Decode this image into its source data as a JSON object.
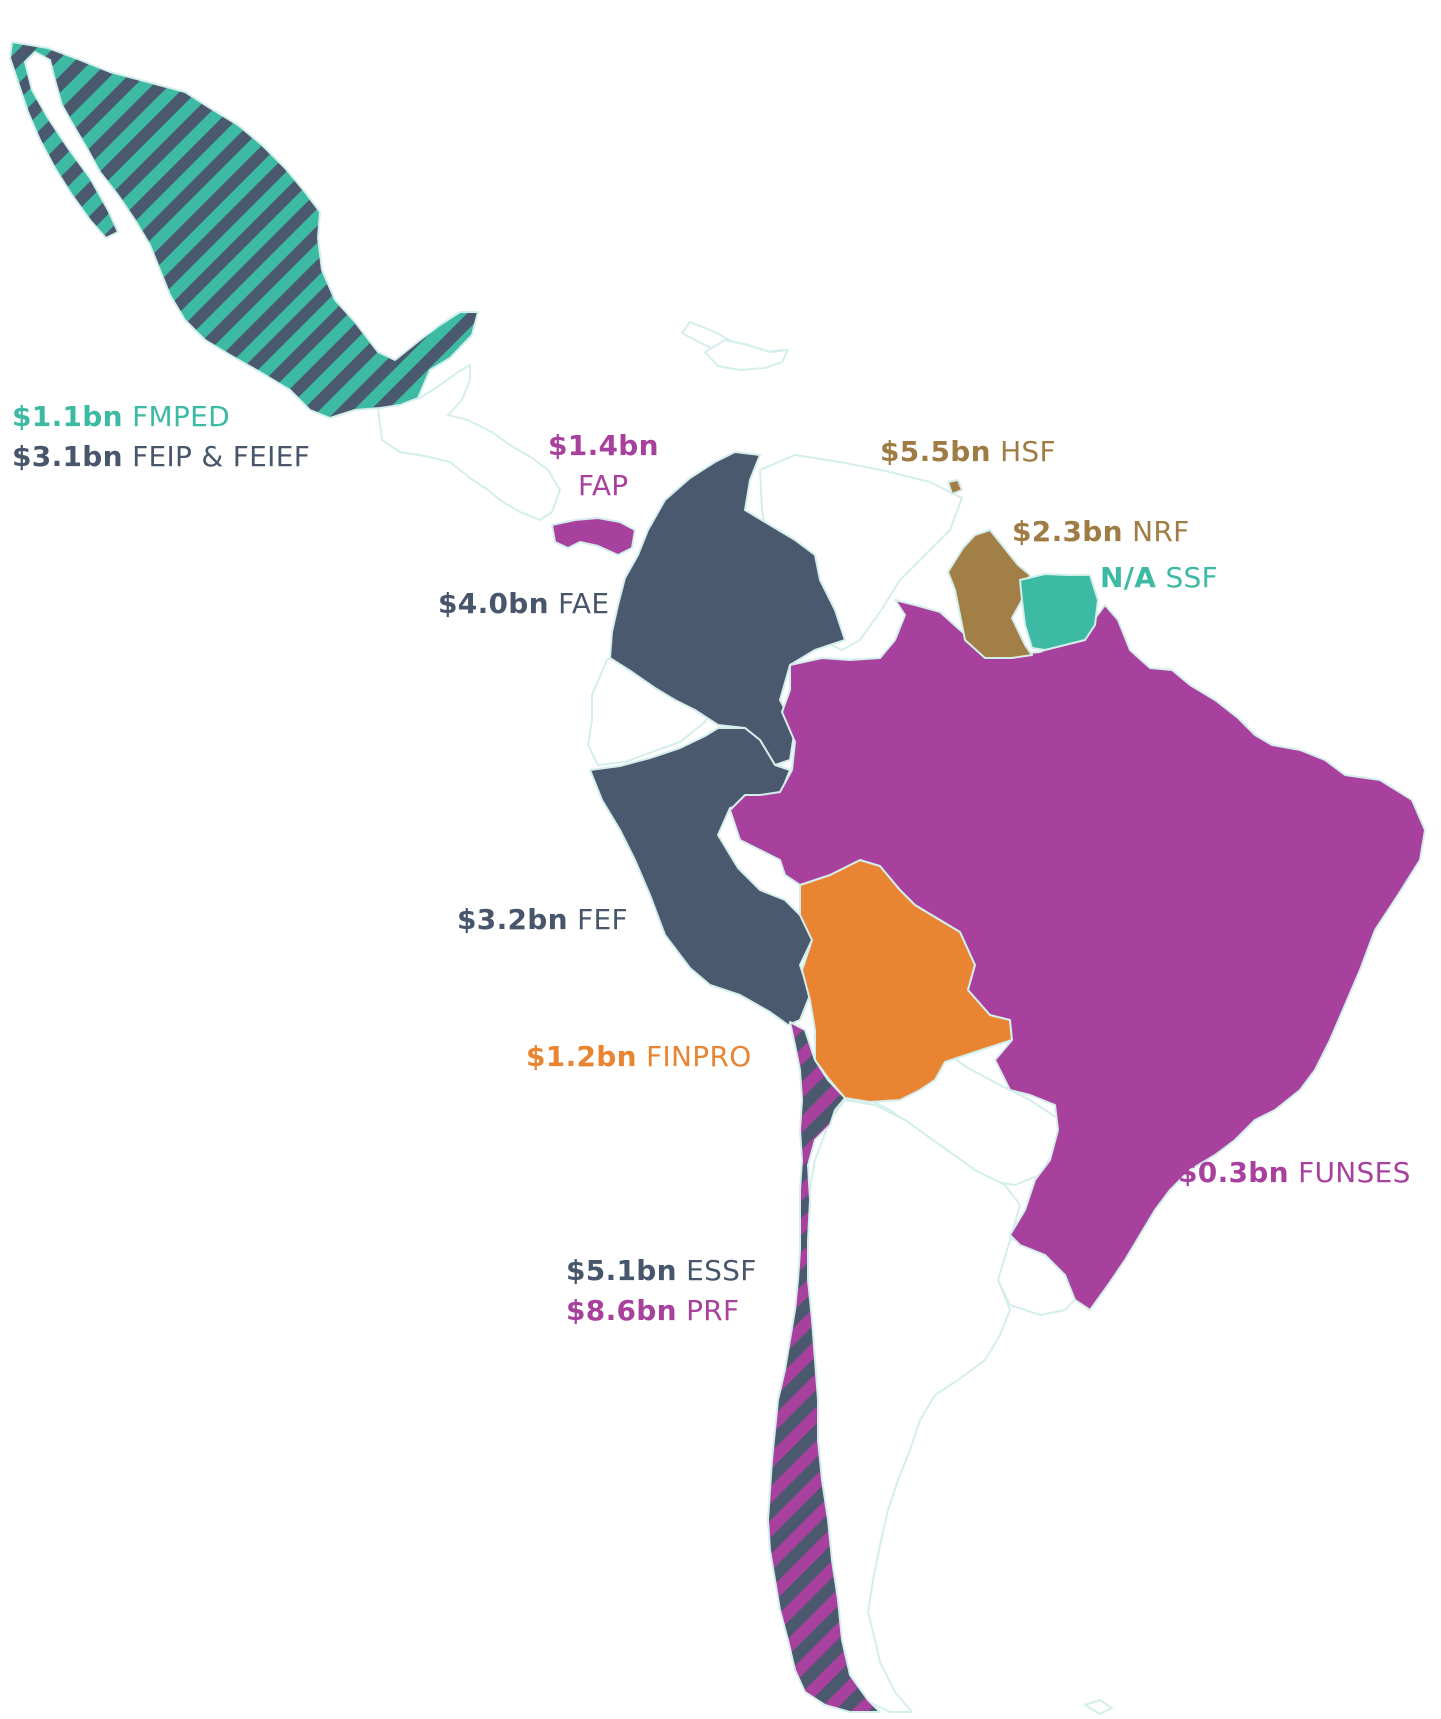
{
  "colors": {
    "teal": "#3dbaa3",
    "slate": "#4a596e",
    "purple": "#a8419d",
    "gold": "#a27f46",
    "orange": "#e88432",
    "border": "#d4eeec",
    "unhighlighted": "#ffffff"
  },
  "funds": {
    "mexico_a": {
      "amount": "$1.1bn",
      "name": "FMPED",
      "country": "Mexico",
      "color": "teal"
    },
    "mexico_b": {
      "amount": "$3.1bn",
      "name": "FEIP & FEIEF",
      "country": "Mexico",
      "color": "slate"
    },
    "panama": {
      "amount": "$1.4bn",
      "name": "FAP",
      "country": "Panama",
      "color": "purple"
    },
    "trinidad": {
      "amount": "$5.5bn",
      "name": "HSF",
      "country": "Trinidad and Tobago",
      "color": "gold"
    },
    "guyana": {
      "amount": "$2.3bn",
      "name": "NRF",
      "country": "Guyana",
      "color": "gold"
    },
    "suriname": {
      "amount": "N/A",
      "name": "SSF",
      "country": "Suriname",
      "color": "teal"
    },
    "colombia": {
      "amount": "$4.0bn",
      "name": "FAE",
      "country": "Colombia",
      "color": "slate"
    },
    "peru": {
      "amount": "$3.2bn",
      "name": "FEF",
      "country": "Peru",
      "color": "slate"
    },
    "bolivia": {
      "amount": "$1.2bn",
      "name": "FINPRO",
      "country": "Bolivia",
      "color": "orange"
    },
    "brazil": {
      "amount": "$0.3bn",
      "name": "FUNSES",
      "country": "Brazil",
      "color": "purple"
    },
    "chile_a": {
      "amount": "$5.1bn",
      "name": "ESSF",
      "country": "Chile",
      "color": "slate"
    },
    "chile_b": {
      "amount": "$8.6bn",
      "name": "PRF",
      "country": "Chile",
      "color": "purple"
    }
  }
}
